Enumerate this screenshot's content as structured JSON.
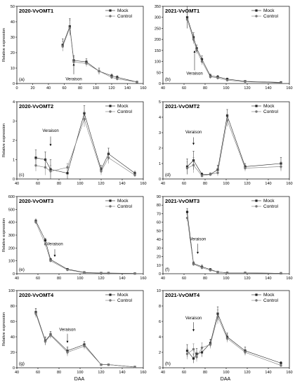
{
  "figure": {
    "xlabel": "DAA",
    "colors": {
      "mock": "#222222",
      "control": "#777777",
      "axis": "#000000"
    }
  },
  "chart_data": [
    {
      "id": "a",
      "type": "line",
      "title": "2020-VvOMT1",
      "panel_label": "(a)",
      "ylabel": "Relative expression",
      "xlim": [
        0,
        160
      ],
      "ylim": [
        0,
        50
      ],
      "yticks": [
        0,
        10,
        20,
        30,
        40,
        50
      ],
      "annotation": {
        "text": "Veraison",
        "x": 72,
        "label_y": 2,
        "arrow_top": 13,
        "arrow_bottom": 6
      },
      "series": [
        {
          "name": "Mock",
          "x": [
            58,
            67,
            72,
            88,
            104,
            120,
            127,
            152
          ],
          "y": [
            25,
            37,
            15,
            14,
            8,
            5,
            4,
            1
          ],
          "err": [
            4,
            5,
            3,
            2,
            2,
            1,
            1,
            0.5
          ]
        },
        {
          "name": "Control",
          "x": [
            58,
            67,
            72,
            88,
            104,
            120,
            127,
            152
          ],
          "y": [
            24,
            36,
            14,
            13,
            8,
            4,
            3,
            1
          ],
          "err": [
            3,
            5,
            3,
            2,
            2,
            1,
            1,
            0.5
          ]
        }
      ]
    },
    {
      "id": "b",
      "type": "line",
      "title": "2021-VvOMT1",
      "panel_label": "(b)",
      "ylabel": "",
      "xlim": [
        40,
        160
      ],
      "ylim": [
        0,
        350
      ],
      "yticks": [
        0,
        50,
        100,
        150,
        200,
        250,
        300,
        350
      ],
      "annotation": {
        "text": "Veraison",
        "x": 70,
        "label_y": 40,
        "arrow_top": 150,
        "arrow_bottom": 60
      },
      "series": [
        {
          "name": "Mock",
          "x": [
            63,
            69,
            72,
            77,
            85,
            92,
            101,
            118,
            152
          ],
          "y": [
            300,
            210,
            160,
            110,
            35,
            30,
            20,
            10,
            5
          ],
          "err": [
            50,
            20,
            15,
            15,
            8,
            6,
            5,
            3,
            2
          ]
        },
        {
          "name": "Control",
          "x": [
            63,
            69,
            72,
            77,
            85,
            92,
            101,
            118,
            152
          ],
          "y": [
            290,
            200,
            150,
            100,
            30,
            25,
            15,
            8,
            3
          ],
          "err": [
            40,
            20,
            15,
            15,
            8,
            6,
            5,
            3,
            2
          ]
        }
      ]
    },
    {
      "id": "c",
      "type": "line",
      "title": "2020-VvOMT2",
      "panel_label": "(c)",
      "ylabel": "Relative expression",
      "xlim": [
        40,
        160
      ],
      "ylim": [
        0,
        4
      ],
      "yticks": [
        0,
        1,
        2,
        3,
        4
      ],
      "annotation": {
        "text": "Veraison",
        "x": 72,
        "label_y": 2.4,
        "arrow_top": 2.2,
        "arrow_bottom": 1.7
      },
      "series": [
        {
          "name": "Mock",
          "x": [
            58,
            67,
            72,
            88,
            104,
            120,
            127,
            152
          ],
          "y": [
            1.1,
            1.0,
            0.5,
            0.3,
            3.4,
            0.5,
            1.3,
            0.3
          ],
          "err": [
            0.4,
            0.4,
            0.5,
            0.3,
            0.4,
            0.2,
            0.3,
            0.1
          ]
        },
        {
          "name": "Control",
          "x": [
            58,
            67,
            72,
            88,
            104,
            120,
            127,
            152
          ],
          "y": [
            0.7,
            0.6,
            0.4,
            0.6,
            3.1,
            0.4,
            1.1,
            0.2
          ],
          "err": [
            0.3,
            0.4,
            0.3,
            0.2,
            0.4,
            0.2,
            0.3,
            0.1
          ]
        }
      ]
    },
    {
      "id": "d",
      "type": "line",
      "title": "2021-VvOMT2",
      "panel_label": "(d)",
      "ylabel": "",
      "xlim": [
        40,
        160
      ],
      "ylim": [
        0,
        5
      ],
      "yticks": [
        0,
        1,
        2,
        3,
        4,
        5
      ],
      "annotation": {
        "text": "Veraison",
        "x": 69,
        "label_y": 2.9,
        "arrow_top": 2.7,
        "arrow_bottom": 2.2
      },
      "series": [
        {
          "name": "Mock",
          "x": [
            63,
            69,
            77,
            85,
            92,
            101,
            118,
            152
          ],
          "y": [
            0.8,
            1.2,
            0.3,
            0.3,
            0.6,
            4.1,
            0.8,
            1.0
          ],
          "err": [
            0.5,
            0.6,
            0.1,
            0.1,
            0.3,
            0.4,
            0.2,
            0.4
          ]
        },
        {
          "name": "Control",
          "x": [
            63,
            69,
            77,
            85,
            92,
            101,
            118,
            152
          ],
          "y": [
            0.7,
            0.9,
            0.2,
            0.3,
            0.4,
            3.8,
            0.7,
            0.8
          ],
          "err": [
            0.4,
            0.5,
            0.1,
            0.1,
            0.2,
            0.4,
            0.2,
            0.3
          ]
        }
      ]
    },
    {
      "id": "e",
      "type": "line",
      "title": "2020-VvOMT3",
      "panel_label": "(e)",
      "ylabel": "Relative expression",
      "xlim": [
        40,
        160
      ],
      "ylim": [
        0,
        600
      ],
      "yticks": [
        0,
        100,
        200,
        300,
        400,
        500,
        600
      ],
      "annotation": {
        "text": "Veraison",
        "x": 76,
        "label_y": 215,
        "arrow_top": 190,
        "arrow_bottom": 130
      },
      "series": [
        {
          "name": "Mock",
          "x": [
            58,
            67,
            72,
            88,
            104,
            120,
            127,
            152
          ],
          "y": [
            410,
            260,
            110,
            35,
            10,
            5,
            5,
            2
          ],
          "err": [
            15,
            15,
            10,
            5,
            3,
            2,
            2,
            1
          ]
        },
        {
          "name": "Control",
          "x": [
            58,
            67,
            72,
            88,
            104,
            120,
            127,
            152
          ],
          "y": [
            400,
            230,
            100,
            30,
            8,
            4,
            4,
            2
          ],
          "err": [
            15,
            15,
            10,
            5,
            3,
            2,
            2,
            1
          ]
        }
      ]
    },
    {
      "id": "f",
      "type": "line",
      "title": "2021-VvOMT3",
      "panel_label": "(f)",
      "ylabel": "",
      "xlim": [
        40,
        160
      ],
      "ylim": [
        0,
        90
      ],
      "yticks": [
        0,
        10,
        20,
        30,
        40,
        50,
        60,
        70,
        80,
        90
      ],
      "annotation": {
        "text": "Veraison",
        "x": 73,
        "label_y": 38,
        "arrow_top": 35,
        "arrow_bottom": 23
      },
      "series": [
        {
          "name": "Mock",
          "x": [
            63,
            69,
            77,
            85,
            92,
            101,
            118,
            152
          ],
          "y": [
            72,
            12,
            8,
            5,
            2,
            1,
            1,
            0.5
          ],
          "err": [
            4,
            2,
            2,
            1,
            1,
            0.5,
            0.5,
            0.3
          ]
        },
        {
          "name": "Control",
          "x": [
            63,
            69,
            77,
            85,
            92,
            101,
            118,
            152
          ],
          "y": [
            65,
            11,
            7,
            4,
            2,
            1,
            1,
            0.5
          ],
          "err": [
            4,
            2,
            2,
            1,
            1,
            0.5,
            0.5,
            0.3
          ]
        }
      ]
    },
    {
      "id": "g",
      "type": "line",
      "title": "2020-VvOMT4",
      "panel_label": "(g)",
      "ylabel": "Relative expression",
      "xlim": [
        40,
        160
      ],
      "ylim": [
        0,
        100
      ],
      "yticks": [
        0,
        20,
        40,
        60,
        80,
        100
      ],
      "annotation": {
        "text": "Veraison",
        "x": 88,
        "label_y": 47,
        "arrow_top": 44,
        "arrow_bottom": 32
      },
      "series": [
        {
          "name": "Mock",
          "x": [
            58,
            67,
            72,
            88,
            104,
            120,
            127,
            152
          ],
          "y": [
            72,
            35,
            43,
            22,
            30,
            4,
            4,
            1
          ],
          "err": [
            5,
            5,
            4,
            5,
            4,
            1,
            1,
            0.5
          ]
        },
        {
          "name": "Control",
          "x": [
            58,
            67,
            72,
            88,
            104,
            120,
            127,
            152
          ],
          "y": [
            70,
            34,
            42,
            20,
            28,
            4,
            4,
            1
          ],
          "err": [
            5,
            5,
            4,
            5,
            4,
            1,
            1,
            0.5
          ]
        }
      ]
    },
    {
      "id": "h",
      "type": "line",
      "title": "2021-VvOMT4",
      "panel_label": "(h)",
      "ylabel": "",
      "xlim": [
        40,
        160
      ],
      "ylim": [
        0,
        10
      ],
      "yticks": [
        0,
        2,
        4,
        6,
        8,
        10
      ],
      "annotation": {
        "text": "Veraison",
        "x": 69,
        "label_y": 6.2,
        "arrow_top": 5.9,
        "arrow_bottom": 4.7
      },
      "series": [
        {
          "name": "Mock",
          "x": [
            63,
            69,
            72,
            77,
            85,
            92,
            101,
            118,
            152
          ],
          "y": [
            2.2,
            1.2,
            1.8,
            2.0,
            3.2,
            7.0,
            4.0,
            2.2,
            0.6
          ],
          "err": [
            0.8,
            0.6,
            0.7,
            0.6,
            0.5,
            0.9,
            0.5,
            0.5,
            0.2
          ]
        },
        {
          "name": "Control",
          "x": [
            63,
            69,
            72,
            77,
            85,
            92,
            101,
            118,
            152
          ],
          "y": [
            1.8,
            2.4,
            1.4,
            2.6,
            3.0,
            6.6,
            3.8,
            2.0,
            0.3
          ],
          "err": [
            0.7,
            0.7,
            0.6,
            0.6,
            0.5,
            0.9,
            0.5,
            0.4,
            0.2
          ]
        }
      ]
    }
  ]
}
